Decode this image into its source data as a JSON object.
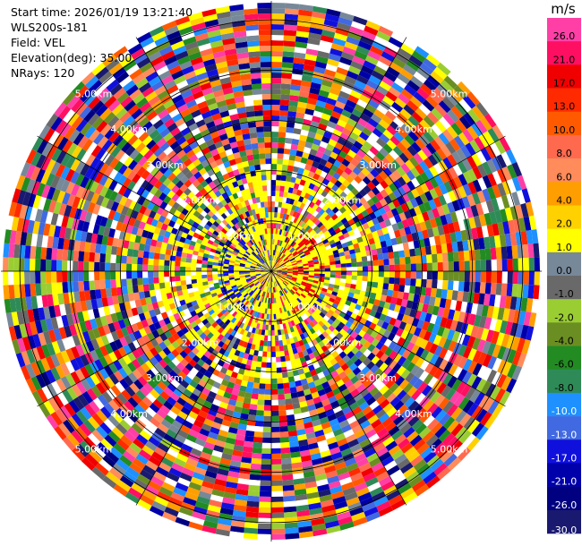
{
  "info": {
    "start_time": "Start time: 2026/01/19 13:21:40",
    "instrument": "WLS200s-181",
    "field": "Field: VEL",
    "elevation": "Elevation(deg): 35.00",
    "nrays": "NRays: 120"
  },
  "range_rings": {
    "labels": [
      "1.00km",
      "2.00km",
      "3.00km",
      "4.00km",
      "5.00km"
    ],
    "values_km": [
      1,
      2,
      3,
      4,
      5
    ]
  },
  "radar": {
    "nrays": 120,
    "max_range_km": 5.0
  },
  "colorbar": {
    "unit": "m/s",
    "ticks": [
      "26.0",
      "21.0",
      "17.0",
      "13.0",
      "10.0",
      "8.0",
      "6.0",
      "4.0",
      "2.0",
      "1.0",
      "0.0",
      "-1.0",
      "-2.0",
      "-4.0",
      "-6.0",
      "-8.0",
      "-10.0",
      "-13.0",
      "-17.0",
      "-21.0",
      "-26.0",
      "-30.0"
    ],
    "colors": [
      "#ff3fa6",
      "#ff0f62",
      "#f00000",
      "#ff2a00",
      "#ff5a00",
      "#ff6a4f",
      "#ff8c5a",
      "#ff9e00",
      "#ffd100",
      "#ffff00",
      "#778899",
      "#696969",
      "#9acd32",
      "#6b8e23",
      "#228b22",
      "#2e8b57",
      "#1e90ff",
      "#4169e1",
      "#1010dd",
      "#0000aa",
      "#000080",
      "#191970"
    ]
  }
}
